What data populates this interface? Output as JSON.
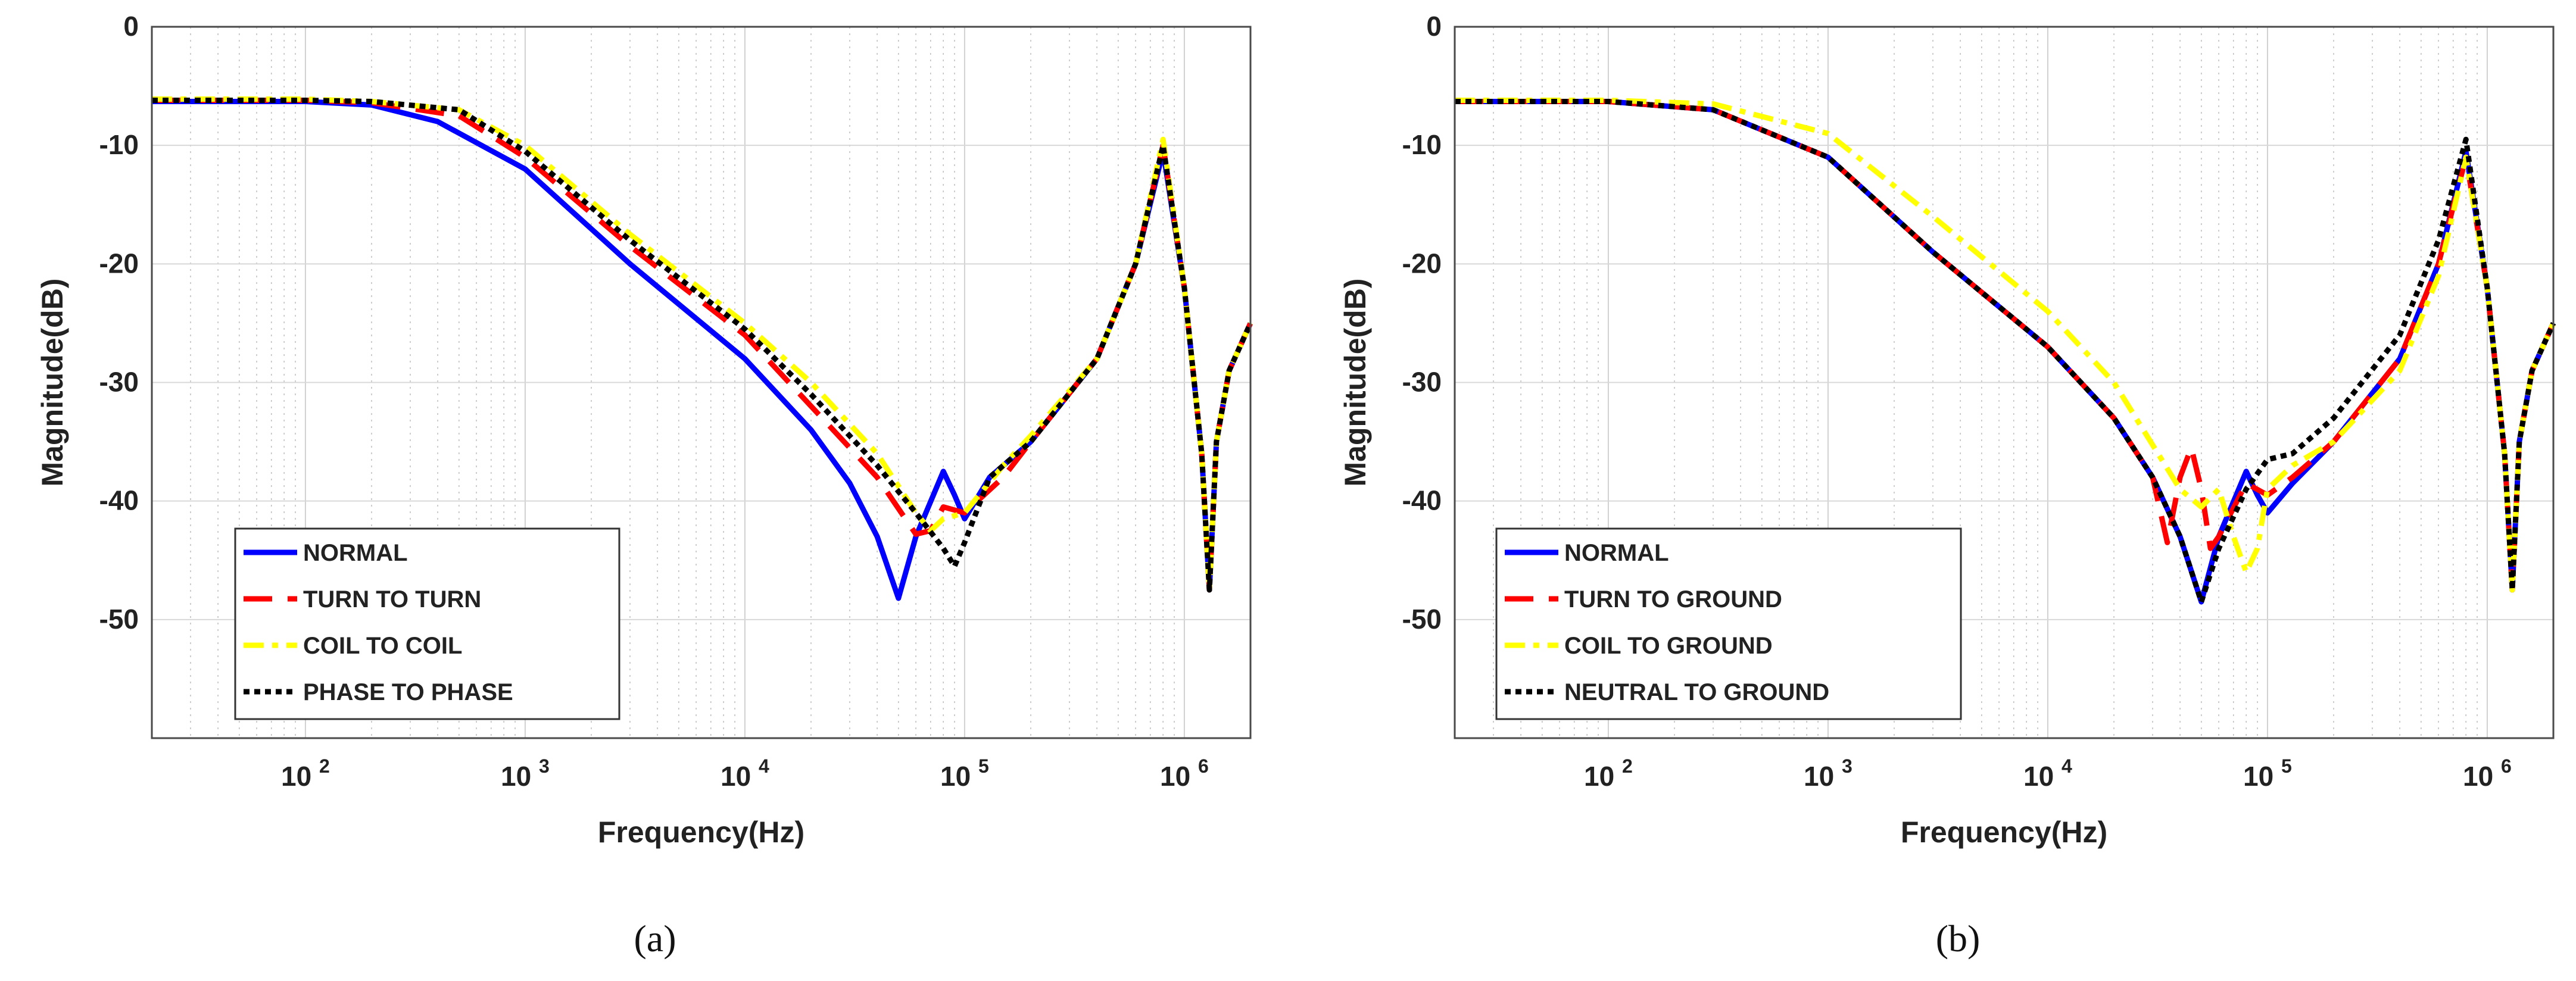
{
  "chart_data": [
    {
      "type": "line",
      "panel_label": "(a)",
      "xlabel": "Frequency(Hz)",
      "ylabel": "Magnitude(dB)",
      "x_scale": "log",
      "xlim": [
        20,
        2000000
      ],
      "ylim": [
        -60,
        0
      ],
      "grid": true,
      "legend_position": "lower-left",
      "x_ticks": [
        {
          "base": "10",
          "exp": "2",
          "value": 100
        },
        {
          "base": "10",
          "exp": "3",
          "value": 1000
        },
        {
          "base": "10",
          "exp": "4",
          "value": 10000
        },
        {
          "base": "10",
          "exp": "5",
          "value": 100000
        },
        {
          "base": "10",
          "exp": "6",
          "value": 1000000
        }
      ],
      "y_ticks": [
        {
          "label": "0",
          "value": 0
        },
        {
          "label": "-10",
          "value": -10
        },
        {
          "label": "-20",
          "value": -20
        },
        {
          "label": "-30",
          "value": -30
        },
        {
          "label": "-40",
          "value": -40
        },
        {
          "label": "-50",
          "value": -50
        }
      ],
      "series": [
        {
          "name": "NORMAL",
          "color": "#0000ff",
          "style": "solid",
          "points": [
            [
              20,
              -6.3
            ],
            [
              100,
              -6.3
            ],
            [
              200,
              -6.6
            ],
            [
              400,
              -8
            ],
            [
              1000,
              -12
            ],
            [
              3000,
              -20
            ],
            [
              10000,
              -28
            ],
            [
              20000,
              -34
            ],
            [
              30000,
              -38.5
            ],
            [
              40000,
              -43
            ],
            [
              50000,
              -48.2
            ],
            [
              60000,
              -43
            ],
            [
              80000,
              -37.5
            ],
            [
              90000,
              -39.5
            ],
            [
              100000,
              -41.5
            ],
            [
              130000,
              -38
            ],
            [
              200000,
              -35
            ],
            [
              400000,
              -28
            ],
            [
              600000,
              -20
            ],
            [
              800000,
              -10.5
            ],
            [
              1000000,
              -22
            ],
            [
              1200000,
              -36
            ],
            [
              1300000,
              -47.5
            ],
            [
              1400000,
              -35
            ],
            [
              1600000,
              -29
            ],
            [
              2000000,
              -25
            ]
          ]
        },
        {
          "name": "TURN TO TURN",
          "color": "#ff0000",
          "style": "dashed",
          "points": [
            [
              20,
              -6.2
            ],
            [
              100,
              -6.2
            ],
            [
              200,
              -6.4
            ],
            [
              500,
              -7.5
            ],
            [
              1000,
              -11
            ],
            [
              3000,
              -18.5
            ],
            [
              10000,
              -26
            ],
            [
              20000,
              -32
            ],
            [
              40000,
              -38
            ],
            [
              60000,
              -42.8
            ],
            [
              70000,
              -42.5
            ],
            [
              80000,
              -40.5
            ],
            [
              100000,
              -41
            ],
            [
              150000,
              -38
            ],
            [
              200000,
              -35
            ],
            [
              400000,
              -28
            ],
            [
              600000,
              -20
            ],
            [
              800000,
              -10
            ],
            [
              1000000,
              -22
            ],
            [
              1200000,
              -36
            ],
            [
              1300000,
              -47.5
            ],
            [
              1400000,
              -35
            ],
            [
              1600000,
              -29
            ],
            [
              2000000,
              -25
            ]
          ]
        },
        {
          "name": "COIL TO COIL",
          "color": "#ffff00",
          "style": "dashdot",
          "points": [
            [
              20,
              -6.1
            ],
            [
              100,
              -6.1
            ],
            [
              200,
              -6.3
            ],
            [
              500,
              -7
            ],
            [
              1000,
              -10
            ],
            [
              3000,
              -17.5
            ],
            [
              10000,
              -25
            ],
            [
              20000,
              -30
            ],
            [
              40000,
              -36
            ],
            [
              60000,
              -41
            ],
            [
              70000,
              -42.5
            ],
            [
              80000,
              -41.5
            ],
            [
              100000,
              -41
            ],
            [
              150000,
              -37
            ],
            [
              200000,
              -34.5
            ],
            [
              400000,
              -28
            ],
            [
              600000,
              -20
            ],
            [
              800000,
              -9.5
            ],
            [
              1000000,
              -22
            ],
            [
              1200000,
              -36
            ],
            [
              1300000,
              -47.5
            ],
            [
              1400000,
              -35
            ],
            [
              1600000,
              -29
            ],
            [
              2000000,
              -25
            ]
          ]
        },
        {
          "name": "PHASE TO PHASE",
          "color": "#000000",
          "style": "dotted",
          "points": [
            [
              20,
              -6.2
            ],
            [
              100,
              -6.2
            ],
            [
              200,
              -6.3
            ],
            [
              500,
              -7
            ],
            [
              1000,
              -10.5
            ],
            [
              3000,
              -18
            ],
            [
              10000,
              -25.5
            ],
            [
              20000,
              -31
            ],
            [
              40000,
              -37
            ],
            [
              60000,
              -41
            ],
            [
              80000,
              -44
            ],
            [
              90000,
              -45.5
            ],
            [
              100000,
              -43.5
            ],
            [
              130000,
              -38
            ],
            [
              200000,
              -35
            ],
            [
              400000,
              -28
            ],
            [
              600000,
              -20
            ],
            [
              800000,
              -10
            ],
            [
              1000000,
              -22
            ],
            [
              1200000,
              -36
            ],
            [
              1300000,
              -47.5
            ],
            [
              1400000,
              -35
            ],
            [
              1600000,
              -29
            ],
            [
              2000000,
              -25
            ]
          ]
        }
      ]
    },
    {
      "type": "line",
      "panel_label": "(b)",
      "xlabel": "Frequency(Hz)",
      "ylabel": "Magnitude(dB)",
      "x_scale": "log",
      "xlim": [
        20,
        2000000
      ],
      "ylim": [
        -60,
        0
      ],
      "grid": true,
      "legend_position": "lower-left",
      "x_ticks": [
        {
          "base": "10",
          "exp": "2",
          "value": 100
        },
        {
          "base": "10",
          "exp": "3",
          "value": 1000
        },
        {
          "base": "10",
          "exp": "4",
          "value": 10000
        },
        {
          "base": "10",
          "exp": "5",
          "value": 100000
        },
        {
          "base": "10",
          "exp": "6",
          "value": 1000000
        }
      ],
      "y_ticks": [
        {
          "label": "0",
          "value": 0
        },
        {
          "label": "-10",
          "value": -10
        },
        {
          "label": "-20",
          "value": -20
        },
        {
          "label": "-30",
          "value": -30
        },
        {
          "label": "-40",
          "value": -40
        },
        {
          "label": "-50",
          "value": -50
        }
      ],
      "series": [
        {
          "name": "NORMAL",
          "color": "#0000ff",
          "style": "solid",
          "points": [
            [
              20,
              -6.3
            ],
            [
              100,
              -6.3
            ],
            [
              300,
              -7
            ],
            [
              1000,
              -11
            ],
            [
              3000,
              -19
            ],
            [
              10000,
              -27
            ],
            [
              20000,
              -33
            ],
            [
              30000,
              -38
            ],
            [
              40000,
              -43
            ],
            [
              50000,
              -48.5
            ],
            [
              60000,
              -43
            ],
            [
              80000,
              -37.5
            ],
            [
              90000,
              -39.5
            ],
            [
              100000,
              -41
            ],
            [
              130000,
              -38.5
            ],
            [
              200000,
              -35
            ],
            [
              400000,
              -28
            ],
            [
              600000,
              -20
            ],
            [
              800000,
              -10.5
            ],
            [
              1000000,
              -22
            ],
            [
              1200000,
              -36
            ],
            [
              1300000,
              -47.5
            ],
            [
              1400000,
              -35
            ],
            [
              1600000,
              -29
            ],
            [
              2000000,
              -25
            ]
          ]
        },
        {
          "name": "TURN TO GROUND",
          "color": "#ff0000",
          "style": "dashed",
          "points": [
            [
              20,
              -6.3
            ],
            [
              100,
              -6.3
            ],
            [
              300,
              -7
            ],
            [
              1000,
              -11
            ],
            [
              3000,
              -19
            ],
            [
              10000,
              -27
            ],
            [
              20000,
              -33
            ],
            [
              30000,
              -38
            ],
            [
              35000,
              -43.5
            ],
            [
              40000,
              -38
            ],
            [
              45000,
              -35.5
            ],
            [
              50000,
              -39
            ],
            [
              55000,
              -44
            ],
            [
              60000,
              -43
            ],
            [
              80000,
              -38.5
            ],
            [
              100000,
              -39.5
            ],
            [
              130000,
              -38
            ],
            [
              200000,
              -35
            ],
            [
              400000,
              -28
            ],
            [
              600000,
              -20
            ],
            [
              800000,
              -11
            ],
            [
              1000000,
              -22
            ],
            [
              1200000,
              -36
            ],
            [
              1300000,
              -47.5
            ],
            [
              1400000,
              -35
            ],
            [
              1600000,
              -29
            ],
            [
              2000000,
              -25
            ]
          ]
        },
        {
          "name": "COIL TO GROUND",
          "color": "#ffff00",
          "style": "dashdot",
          "points": [
            [
              20,
              -6.2
            ],
            [
              100,
              -6.2
            ],
            [
              300,
              -6.5
            ],
            [
              1000,
              -9
            ],
            [
              3000,
              -16
            ],
            [
              10000,
              -24
            ],
            [
              20000,
              -30
            ],
            [
              40000,
              -39
            ],
            [
              50000,
              -40.5
            ],
            [
              60000,
              -39
            ],
            [
              70000,
              -43
            ],
            [
              80000,
              -46
            ],
            [
              90000,
              -44
            ],
            [
              100000,
              -39
            ],
            [
              130000,
              -37
            ],
            [
              200000,
              -35
            ],
            [
              400000,
              -29
            ],
            [
              600000,
              -21
            ],
            [
              800000,
              -11
            ],
            [
              1000000,
              -22
            ],
            [
              1200000,
              -36
            ],
            [
              1300000,
              -47.5
            ],
            [
              1400000,
              -35
            ],
            [
              1600000,
              -29
            ],
            [
              2000000,
              -25
            ]
          ]
        },
        {
          "name": "NEUTRAL TO GROUND",
          "color": "#000000",
          "style": "dotted",
          "points": [
            [
              20,
              -6.3
            ],
            [
              100,
              -6.3
            ],
            [
              300,
              -7
            ],
            [
              1000,
              -11
            ],
            [
              3000,
              -19
            ],
            [
              10000,
              -27
            ],
            [
              20000,
              -33
            ],
            [
              30000,
              -38
            ],
            [
              40000,
              -43
            ],
            [
              50000,
              -48.5
            ],
            [
              60000,
              -44
            ],
            [
              80000,
              -39
            ],
            [
              100000,
              -36.5
            ],
            [
              130000,
              -36
            ],
            [
              200000,
              -33
            ],
            [
              400000,
              -26
            ],
            [
              600000,
              -18
            ],
            [
              800000,
              -9.5
            ],
            [
              1000000,
              -22
            ],
            [
              1200000,
              -36
            ],
            [
              1300000,
              -47.5
            ],
            [
              1400000,
              -35
            ],
            [
              1600000,
              -29
            ],
            [
              2000000,
              -25
            ]
          ]
        }
      ]
    }
  ]
}
